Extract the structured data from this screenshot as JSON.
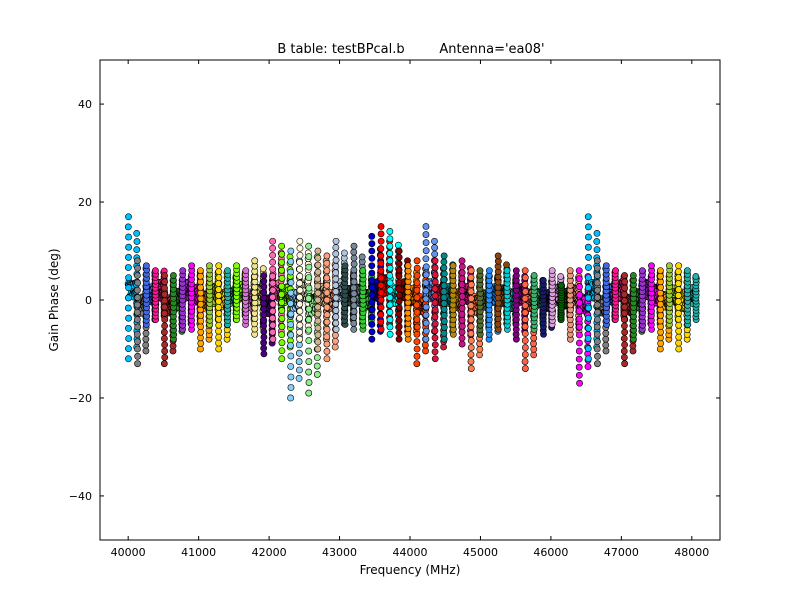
{
  "chart_data": {
    "type": "scatter",
    "title_left": "B table: testBPcal.b",
    "title_right": "Antenna='ea08'",
    "xlabel": "Frequency (MHz)",
    "ylabel": "Gain Phase (deg)",
    "xlim": [
      39600,
      48400
    ],
    "ylim": [
      -49,
      49
    ],
    "x_ticks": [
      40000,
      41000,
      42000,
      43000,
      44000,
      45000,
      46000,
      47000,
      48000
    ],
    "y_ticks": [
      -40,
      -20,
      0,
      20,
      40
    ],
    "x_tick_labels": [
      "40000",
      "41000",
      "42000",
      "43000",
      "44000",
      "45000",
      "46000",
      "47000",
      "48000"
    ],
    "y_tick_labels": [
      "−40",
      "−20",
      "0",
      "20",
      "40"
    ],
    "grid": false,
    "spw_start_mhz": 40000,
    "spw_width_mhz": 128,
    "spw_count": 63,
    "series": [
      {
        "color": "#00bfff",
        "values": [
          1,
          17,
          -12,
          2
        ]
      },
      {
        "color": "#808080",
        "values": [
          0,
          8,
          -13,
          -1
        ]
      },
      {
        "color": "#4169e1",
        "values": [
          0,
          7,
          -5,
          1
        ]
      },
      {
        "color": "#ff1493",
        "values": [
          1,
          6,
          -4,
          2
        ]
      },
      {
        "color": "#a52a2a",
        "values": [
          0,
          5,
          -13,
          -1
        ]
      },
      {
        "color": "#228b22",
        "values": [
          -1,
          5,
          -8,
          0
        ]
      },
      {
        "color": "#9932cc",
        "values": [
          1,
          6,
          -6,
          2
        ]
      },
      {
        "color": "#ff00ff",
        "values": [
          0,
          7,
          -6,
          1
        ]
      },
      {
        "color": "#ffa500",
        "values": [
          -1,
          6,
          -10,
          0
        ]
      },
      {
        "color": "#9acd32",
        "values": [
          0,
          7,
          -5,
          1
        ]
      },
      {
        "color": "#ffd700",
        "values": [
          1,
          7,
          -10,
          0
        ]
      },
      {
        "color": "#20b2aa",
        "values": [
          0,
          6,
          -5,
          1
        ]
      },
      {
        "color": "#7fff00",
        "values": [
          0,
          7,
          -4,
          2
        ]
      },
      {
        "color": "#da70d6",
        "values": [
          1,
          6,
          -5,
          0
        ]
      },
      {
        "color": "#f0e68c",
        "values": [
          -1,
          8,
          -7,
          1
        ]
      },
      {
        "color": "#4b0082",
        "values": [
          0,
          5,
          -11,
          -1
        ]
      },
      {
        "color": "#ff69b4",
        "values": [
          1,
          12,
          -8,
          2
        ]
      },
      {
        "color": "#7cfc00",
        "values": [
          0,
          11,
          -12,
          1
        ]
      },
      {
        "color": "#87cefa",
        "values": [
          -1,
          10,
          -20,
          0
        ]
      },
      {
        "color": "#fff8dc",
        "values": [
          1,
          12,
          -8,
          2
        ]
      },
      {
        "color": "#90ee90",
        "values": [
          0,
          11,
          -19,
          -1
        ]
      },
      {
        "color": "#d2b48c",
        "values": [
          1,
          10,
          -10,
          1
        ]
      },
      {
        "color": "#ffa07a",
        "values": [
          0,
          9,
          -12,
          0
        ]
      },
      {
        "color": "#b0c4de",
        "values": [
          1,
          12,
          -6,
          2
        ]
      },
      {
        "color": "#2f4f4f",
        "values": [
          0,
          7,
          -5,
          1
        ]
      },
      {
        "color": "#778899",
        "values": [
          1,
          11,
          -6,
          1
        ]
      },
      {
        "color": "#32cd32",
        "values": [
          0,
          6,
          -6,
          0
        ]
      },
      {
        "color": "#0000cd",
        "values": [
          1,
          13,
          -8,
          2
        ]
      },
      {
        "color": "#ff0000",
        "values": [
          2,
          15,
          -6,
          3
        ]
      },
      {
        "color": "#00ffff",
        "values": [
          0,
          14,
          -7,
          1
        ]
      },
      {
        "color": "#8b0000",
        "values": [
          1,
          10,
          -8,
          2
        ]
      },
      {
        "color": "#ff8c00",
        "values": [
          0,
          7,
          -8,
          1
        ]
      },
      {
        "color": "#ff4500",
        "values": [
          0,
          8,
          -13,
          -1
        ]
      },
      {
        "color": "#6495ed",
        "values": [
          1,
          15,
          -8,
          2
        ]
      },
      {
        "color": "#dc143c",
        "values": [
          0,
          8,
          -12,
          1
        ]
      },
      {
        "color": "#008b8b",
        "values": [
          0,
          9,
          -8,
          1
        ]
      },
      {
        "color": "#b8860b",
        "values": [
          0,
          7,
          -7,
          0
        ]
      },
      {
        "color": "#c71585",
        "values": [
          1,
          8,
          -9,
          1
        ]
      },
      {
        "color": "#ff7f50",
        "values": [
          0,
          6,
          -14,
          -1
        ]
      },
      {
        "color": "#556b2f",
        "values": [
          0,
          6,
          -7,
          0
        ]
      },
      {
        "color": "#1e90ff",
        "values": [
          1,
          6,
          -8,
          1
        ]
      },
      {
        "color": "#8b4513",
        "values": [
          0,
          9,
          -6,
          1
        ]
      },
      {
        "color": "#00ced1",
        "values": [
          0,
          6,
          -6,
          0
        ]
      },
      {
        "color": "#800080",
        "values": [
          1,
          6,
          -8,
          1
        ]
      },
      {
        "color": "#ff6347",
        "values": [
          0,
          6,
          -14,
          0
        ]
      },
      {
        "color": "#3cb371",
        "values": [
          0,
          5,
          -6,
          0
        ]
      },
      {
        "color": "#191970",
        "values": [
          0,
          4,
          -7,
          0
        ]
      },
      {
        "color": "#dda0dd",
        "values": [
          1,
          6,
          -5,
          1
        ]
      },
      {
        "color": "#006400",
        "values": [
          0,
          3,
          -4,
          0
        ]
      },
      {
        "color": "#e9967a",
        "values": [
          1,
          6,
          -8,
          1
        ]
      },
      {
        "color": "#ff00ff",
        "values": [
          0,
          6,
          -17,
          -1
        ]
      }
    ]
  }
}
